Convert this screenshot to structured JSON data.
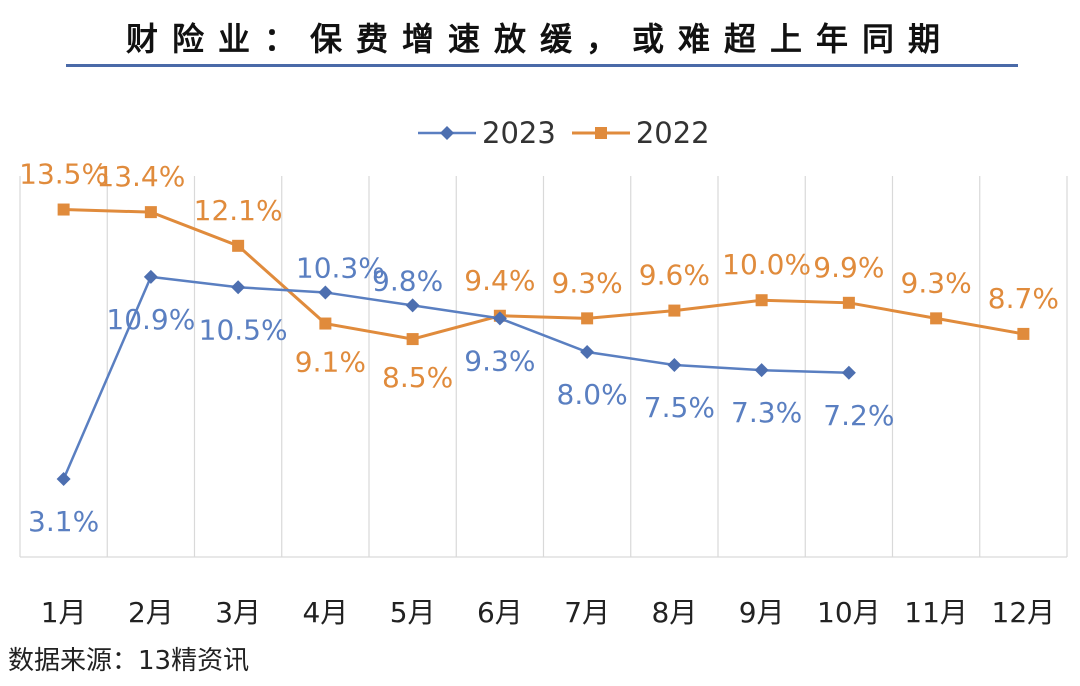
{
  "title": "财险业：保费增速放缓，或难超上年同期",
  "source": "数据来源：13精资讯",
  "colors": {
    "s2023": "#5a7fc1",
    "s2022": "#e08b3c",
    "grid": "#d9d9d9"
  },
  "chart_data": {
    "type": "line",
    "title": "财险业：保费增速放缓，或难超上年同期",
    "categories": [
      "1月",
      "2月",
      "3月",
      "4月",
      "5月",
      "6月",
      "7月",
      "8月",
      "9月",
      "10月",
      "11月",
      "12月"
    ],
    "series": [
      {
        "name": "2023",
        "marker": "diamond",
        "values": [
          3.1,
          10.9,
          10.5,
          10.3,
          9.8,
          9.3,
          8.0,
          7.5,
          7.3,
          7.2,
          null,
          null
        ],
        "labels": [
          "3.1%",
          "10.9%",
          "10.5%",
          "10.3%",
          "9.8%",
          "9.3%",
          "8.0%",
          "7.5%",
          "7.3%",
          "7.2%",
          null,
          null
        ]
      },
      {
        "name": "2022",
        "marker": "square",
        "values": [
          13.5,
          13.4,
          12.1,
          9.1,
          8.5,
          9.4,
          9.3,
          9.6,
          10.0,
          9.9,
          9.3,
          8.7
        ],
        "labels": [
          "13.5%",
          "13.4%",
          "12.1%",
          "9.1%",
          "8.5%",
          "9.4%",
          "9.3%",
          "9.6%",
          "10.0%",
          "9.9%",
          "9.3%",
          "8.7%"
        ]
      }
    ],
    "grid": "vertical",
    "legend": "top-center"
  }
}
